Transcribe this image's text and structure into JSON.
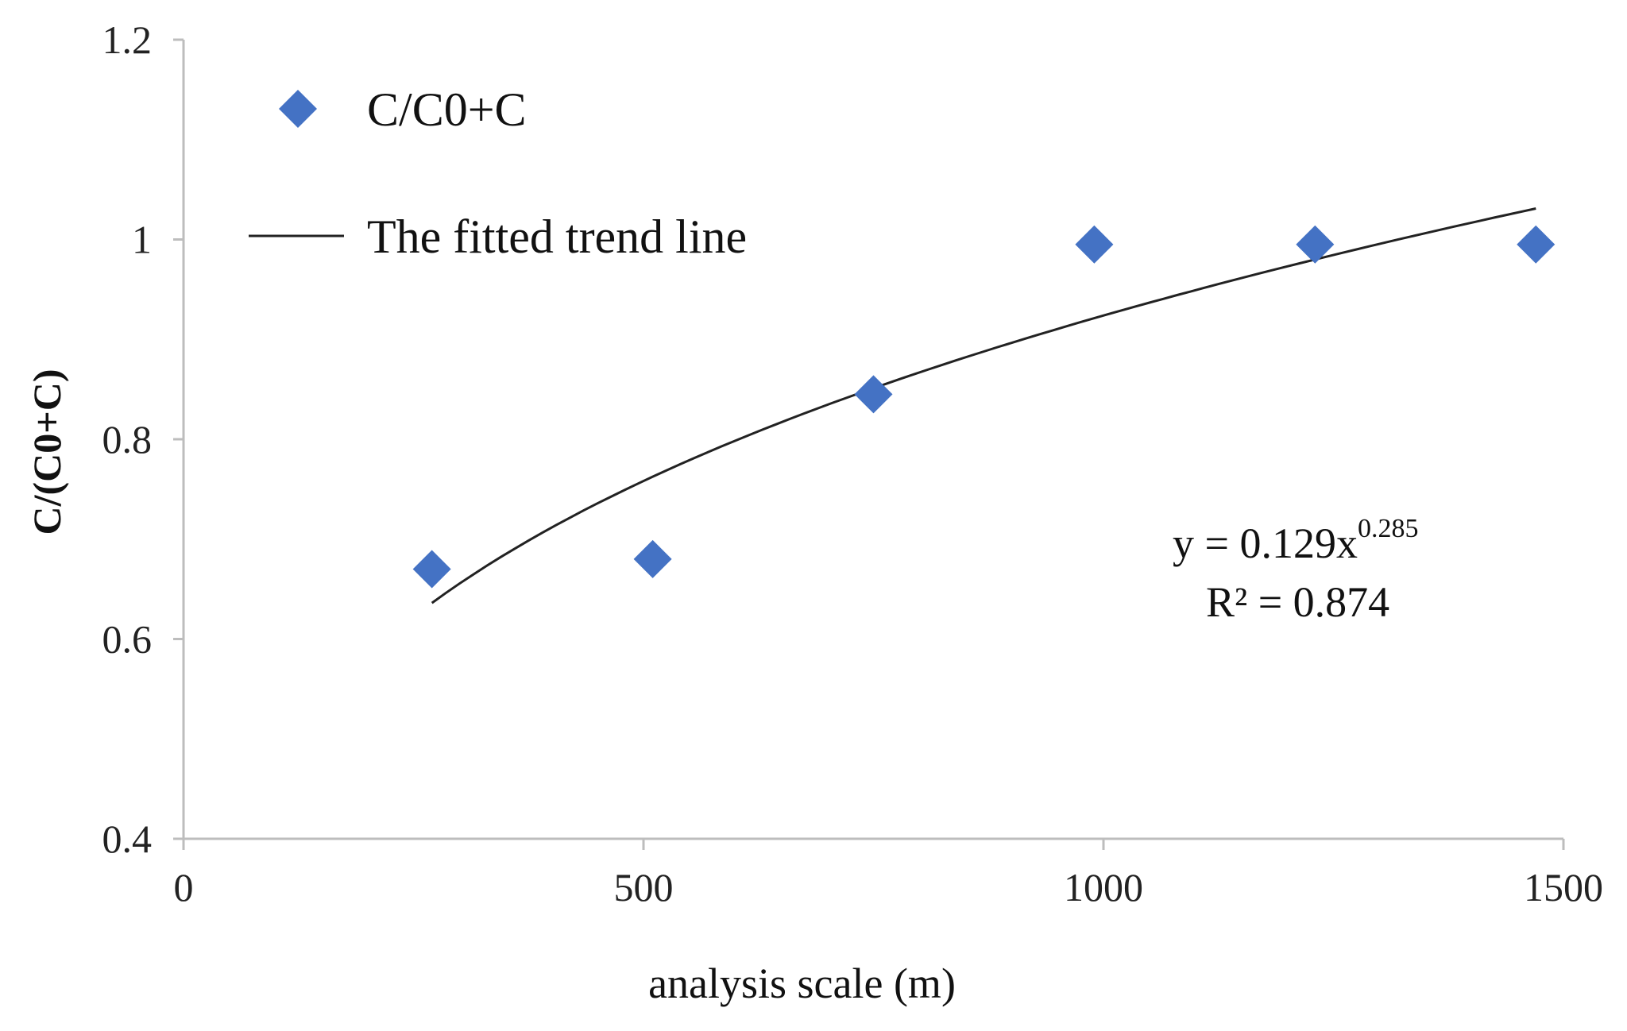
{
  "chart_data": {
    "type": "scatter",
    "title": "",
    "xlabel": "analysis scale (m)",
    "ylabel": "C/(C0+C)",
    "xlim": [
      0,
      1500
    ],
    "ylim": [
      0.4,
      1.2
    ],
    "xticks": [
      0,
      500,
      1000,
      1500
    ],
    "xtick_labels": [
      "0",
      "500",
      "1000",
      "1500"
    ],
    "yticks": [
      0.4,
      0.6,
      0.8,
      1.0,
      1.2
    ],
    "ytick_labels": [
      "0.4",
      "0.6",
      "0.8",
      "1",
      "1.2"
    ],
    "grid": false,
    "legend_position": "top-left",
    "series": [
      {
        "name": "C/C0+C",
        "marker": "diamond",
        "color": "#4472c4",
        "x": [
          270,
          510,
          750,
          990,
          1230,
          1470
        ],
        "y": [
          0.67,
          0.68,
          0.845,
          0.995,
          0.995,
          0.995
        ]
      }
    ],
    "trendline": {
      "name": "The fitted trend line",
      "model": "power",
      "coefficient": 0.129,
      "exponent": 0.285,
      "x_range": [
        270,
        1470
      ],
      "color": "#222222"
    },
    "annotation": {
      "equation_prefix": "y = 0.129x",
      "equation_exponent": "0.285",
      "r_squared": "R² = 0.874"
    }
  }
}
